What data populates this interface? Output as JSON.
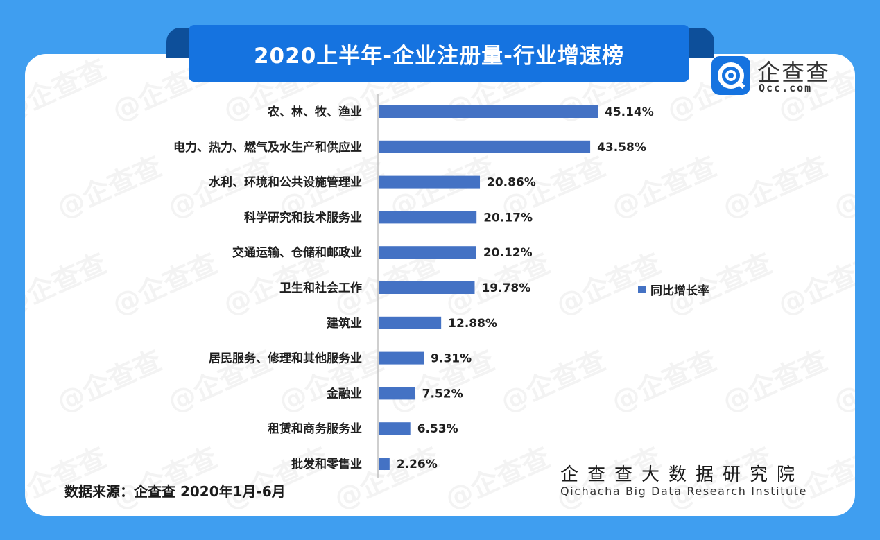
{
  "header": {
    "title": "2020上半年-企业注册量-行业增速榜"
  },
  "logo": {
    "name": "企查查",
    "domain": "Qcc.com",
    "icon": "qcc-logo-icon"
  },
  "watermark": {
    "text": "企查查"
  },
  "colors": {
    "background": "#3f9ef0",
    "banner": "#1573e0",
    "bar": "#4472c4"
  },
  "chart_data": {
    "type": "bar",
    "orientation": "horizontal",
    "categories": [
      "农、林、牧、渔业",
      "电力、热力、燃气及水生产和供应业",
      "水利、环境和公共设施管理业",
      "科学研究和技术服务业",
      "交通运输、仓储和邮政业",
      "卫生和社会工作",
      "建筑业",
      "居民服务、修理和其他服务业",
      "金融业",
      "租赁和商务服务业",
      "批发和零售业"
    ],
    "series": [
      {
        "name": "同比增长率",
        "values": [
          45.14,
          43.58,
          20.86,
          20.17,
          20.12,
          19.78,
          12.88,
          9.31,
          7.52,
          6.53,
          2.26
        ]
      }
    ],
    "data_labels": [
      "45.14%",
      "43.58%",
      "20.86%",
      "20.17%",
      "20.12%",
      "19.78%",
      "12.88%",
      "9.31%",
      "7.52%",
      "6.53%",
      "2.26%"
    ],
    "xlim": [
      0,
      50
    ],
    "legend": "right",
    "grid": false
  },
  "footer": {
    "source": "数据来源：企查查   2020年1月-6月",
    "institute_cn": "企查查大数据研究院",
    "institute_en": "Qichacha Big Data Research Institute"
  }
}
